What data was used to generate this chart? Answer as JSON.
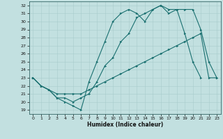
{
  "xlabel": "Humidex (Indice chaleur)",
  "bg_color": "#c2e0e0",
  "line_color": "#1a7070",
  "grid_color": "#a8cccc",
  "xlim": [
    -0.5,
    23.5
  ],
  "ylim": [
    18.5,
    32.5
  ],
  "yticks": [
    19,
    20,
    21,
    22,
    23,
    24,
    25,
    26,
    27,
    28,
    29,
    30,
    31,
    32
  ],
  "xticks": [
    0,
    1,
    2,
    3,
    4,
    5,
    6,
    7,
    8,
    9,
    10,
    11,
    12,
    13,
    14,
    15,
    16,
    17,
    18,
    19,
    20,
    21,
    22,
    23
  ],
  "line1_x": [
    0,
    1,
    2,
    3,
    4,
    5,
    6,
    7,
    8,
    9,
    10,
    11,
    12,
    13,
    14,
    15,
    16,
    17,
    18,
    19,
    20,
    21
  ],
  "line1_y": [
    23.0,
    22.0,
    21.5,
    20.5,
    20.0,
    19.5,
    19.0,
    22.5,
    25.0,
    27.5,
    30.0,
    31.0,
    31.5,
    31.0,
    30.0,
    31.5,
    32.0,
    31.0,
    31.5,
    28.5,
    25.0,
    23.0
  ],
  "line2_x": [
    0,
    1,
    2,
    3,
    4,
    5,
    6,
    7,
    8,
    9,
    10,
    11,
    12,
    13,
    14,
    15,
    16,
    17,
    18,
    19,
    20,
    21,
    22,
    23
  ],
  "line2_y": [
    23.0,
    22.0,
    21.5,
    20.5,
    20.5,
    20.0,
    20.5,
    21.0,
    22.5,
    24.5,
    25.5,
    27.5,
    28.5,
    30.5,
    31.0,
    31.5,
    32.0,
    31.5,
    31.5,
    31.5,
    31.5,
    29.0,
    25.0,
    23.0
  ],
  "line3_x": [
    0,
    1,
    2,
    3,
    4,
    5,
    6,
    7,
    8,
    9,
    10,
    11,
    12,
    13,
    14,
    15,
    16,
    17,
    18,
    19,
    20,
    21,
    22,
    23
  ],
  "line3_y": [
    23.0,
    22.0,
    21.5,
    21.0,
    21.0,
    21.0,
    21.0,
    21.5,
    22.0,
    22.5,
    23.0,
    23.5,
    24.0,
    24.5,
    25.0,
    25.5,
    26.0,
    26.5,
    27.0,
    27.5,
    28.0,
    28.5,
    23.0,
    23.0
  ]
}
